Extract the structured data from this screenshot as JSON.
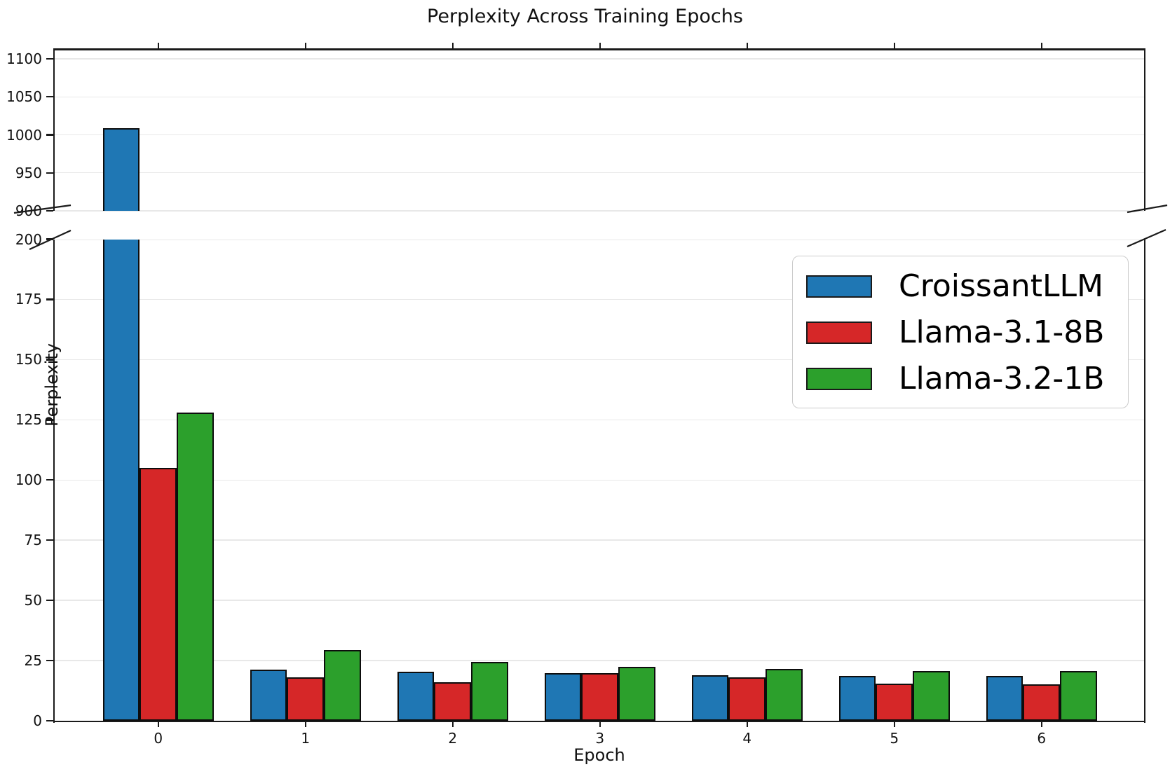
{
  "chart_data": {
    "type": "bar",
    "title": "Perplexity Across Training Epochs",
    "xlabel": "Epoch",
    "ylabel": "Perplexity",
    "categories": [
      "0",
      "1",
      "2",
      "3",
      "4",
      "5",
      "6"
    ],
    "series": [
      {
        "name": "CroissantLLM",
        "color": "#1f77b4",
        "values": [
          1009,
          21.3,
          20.3,
          19.7,
          19.0,
          18.5,
          18.5
        ]
      },
      {
        "name": "Llama-3.1-8B",
        "color": "#d62728",
        "values": [
          105,
          17.9,
          16.1,
          19.9,
          17.9,
          15.4,
          15.2
        ]
      },
      {
        "name": "Llama-3.2-1B",
        "color": "#2ca02c",
        "values": [
          128,
          29.4,
          24.4,
          22.4,
          21.6,
          20.6,
          20.7
        ]
      }
    ],
    "broken_axis": {
      "upper_ylim": [
        900,
        1112
      ],
      "upper_yticks": [
        900,
        950,
        1000,
        1050,
        1100
      ],
      "lower_ylim": [
        0,
        200
      ],
      "lower_yticks": [
        0,
        25,
        50,
        75,
        100,
        125,
        150,
        175,
        200
      ]
    },
    "legend": {
      "position": "upper right"
    },
    "grid": true,
    "bar_edge_color": "#0d0d0d",
    "grid_color": "#e8e8e8"
  }
}
